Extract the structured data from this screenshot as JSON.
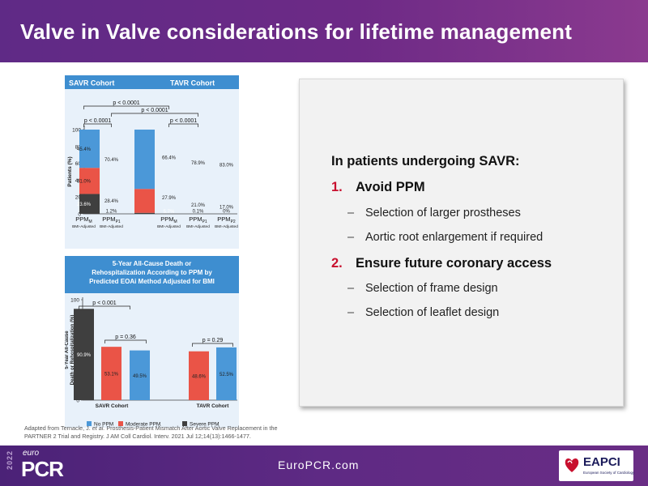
{
  "slide": {
    "title": "Valve in Valve considerations for lifetime management"
  },
  "colors": {
    "no_ppm": "#4b98d8",
    "moderate_ppm": "#ea5447",
    "severe_ppm": "#3f3f3f",
    "header_blue": "#3e8ed0",
    "accent_red": "#c8102e"
  },
  "chart_data": [
    {
      "type": "bar",
      "stacked": true,
      "header_left": "SAVR Cohort",
      "header_right": "TAVR Cohort",
      "ylabel": "Patients (%)",
      "ylim": [
        0,
        100
      ],
      "yticks": [
        0,
        20,
        40,
        60,
        80,
        100
      ],
      "categories": [
        {
          "main": "PPM",
          "sub": "M",
          "caption": "BMI-Adjusted"
        },
        {
          "main": "PPM",
          "sub": "P1",
          "caption": "BMI-Adjusted"
        },
        {
          "main": "PPM",
          "sub": "M",
          "caption": "BMI-Adjusted"
        },
        {
          "main": "PPM",
          "sub": "P1",
          "caption": "BMI-Adjusted"
        },
        {
          "main": "PPM",
          "sub": "P2",
          "caption": "BMI-Adjusted"
        }
      ],
      "series": [
        {
          "name": "Severe PPM",
          "values": [
            23.6,
            1.2,
            5.7,
            0.1,
            0
          ],
          "labels": [
            "23.6%",
            "1.2%",
            "5.7%",
            "0.1%",
            "0%"
          ]
        },
        {
          "name": "Moderate PPM",
          "values": [
            31.0,
            28.4,
            27.9,
            21.0,
            17.0
          ],
          "labels": [
            "31.0%",
            "28.4%",
            "27.9%",
            "21.0%",
            "17.0%"
          ]
        },
        {
          "name": "No PPM",
          "values": [
            45.4,
            70.4,
            66.4,
            78.9,
            83.0
          ],
          "labels": [
            "45.4%",
            "70.4%",
            "66.4%",
            "78.9%",
            "83.0%"
          ]
        }
      ],
      "annotations": [
        "p < 0.0001",
        "p < 0.0001",
        "p < 0.0001",
        "p < 0.0001"
      ]
    },
    {
      "type": "bar",
      "title_lines": [
        "5-Year All-Cause Death or",
        "Rehospitalization According to PPM by",
        "Predicted EOAi Method Adjusted for BMI"
      ],
      "ylabel_lines": [
        "5-Year All-Cause",
        "Death or Rehospitalization (%)"
      ],
      "ylim": [
        0,
        100
      ],
      "yticks": [
        0,
        20,
        40,
        60,
        80,
        100
      ],
      "groups": [
        "SAVR Cohort",
        "TAVR Cohort"
      ],
      "bars": [
        {
          "group": "SAVR Cohort",
          "series": "Severe PPM",
          "value": 90.9,
          "label": "90.9%"
        },
        {
          "group": "SAVR Cohort",
          "series": "Moderate PPM",
          "value": 53.1,
          "label": "53.1%"
        },
        {
          "group": "SAVR Cohort",
          "series": "No PPM",
          "value": 49.5,
          "label": "49.5%"
        },
        {
          "group": "TAVR Cohort",
          "series": "Moderate PPM",
          "value": 48.6,
          "label": "48.6%"
        },
        {
          "group": "TAVR Cohort",
          "series": "No PPM",
          "value": 52.5,
          "label": "52.5%"
        }
      ],
      "annotations": [
        "p < 0.001",
        "p = 0.36",
        "p = 0.29"
      ],
      "legend": [
        {
          "name": "No PPM",
          "color": "#4b98d8"
        },
        {
          "name": "Moderate PPM",
          "color": "#ea5447"
        },
        {
          "name": "Severe PPM",
          "color": "#3f3f3f"
        }
      ]
    }
  ],
  "citation": {
    "prefix": "Adapted from Ternacle, J. ",
    "etal": "et al.",
    "rest": " Prosthesis-Patient Mismatch After Aortic Valve Replacement in the PARTNER 2 Trial and Registry. J AM Coll Cardiol. Interv. 2021  Jul 12;14(13):1466-1477."
  },
  "content": {
    "intro": "In patients undergoing SAVR:",
    "items": [
      {
        "num": "1.",
        "label": "Avoid PPM",
        "subs": [
          "Selection of larger prostheses",
          "Aortic root enlargement  if required"
        ]
      },
      {
        "num": "2.",
        "label": "Ensure future coronary access",
        "subs": [
          "Selection of frame design",
          "Selection of leaflet design"
        ]
      }
    ],
    "dash": "–"
  },
  "footer": {
    "year": "2022",
    "logo_top": "euro",
    "logo_main": "PCR",
    "website": "EuroPCR.com",
    "partner": "EAPCI",
    "partner_sub": "European Society of Cardiology"
  }
}
